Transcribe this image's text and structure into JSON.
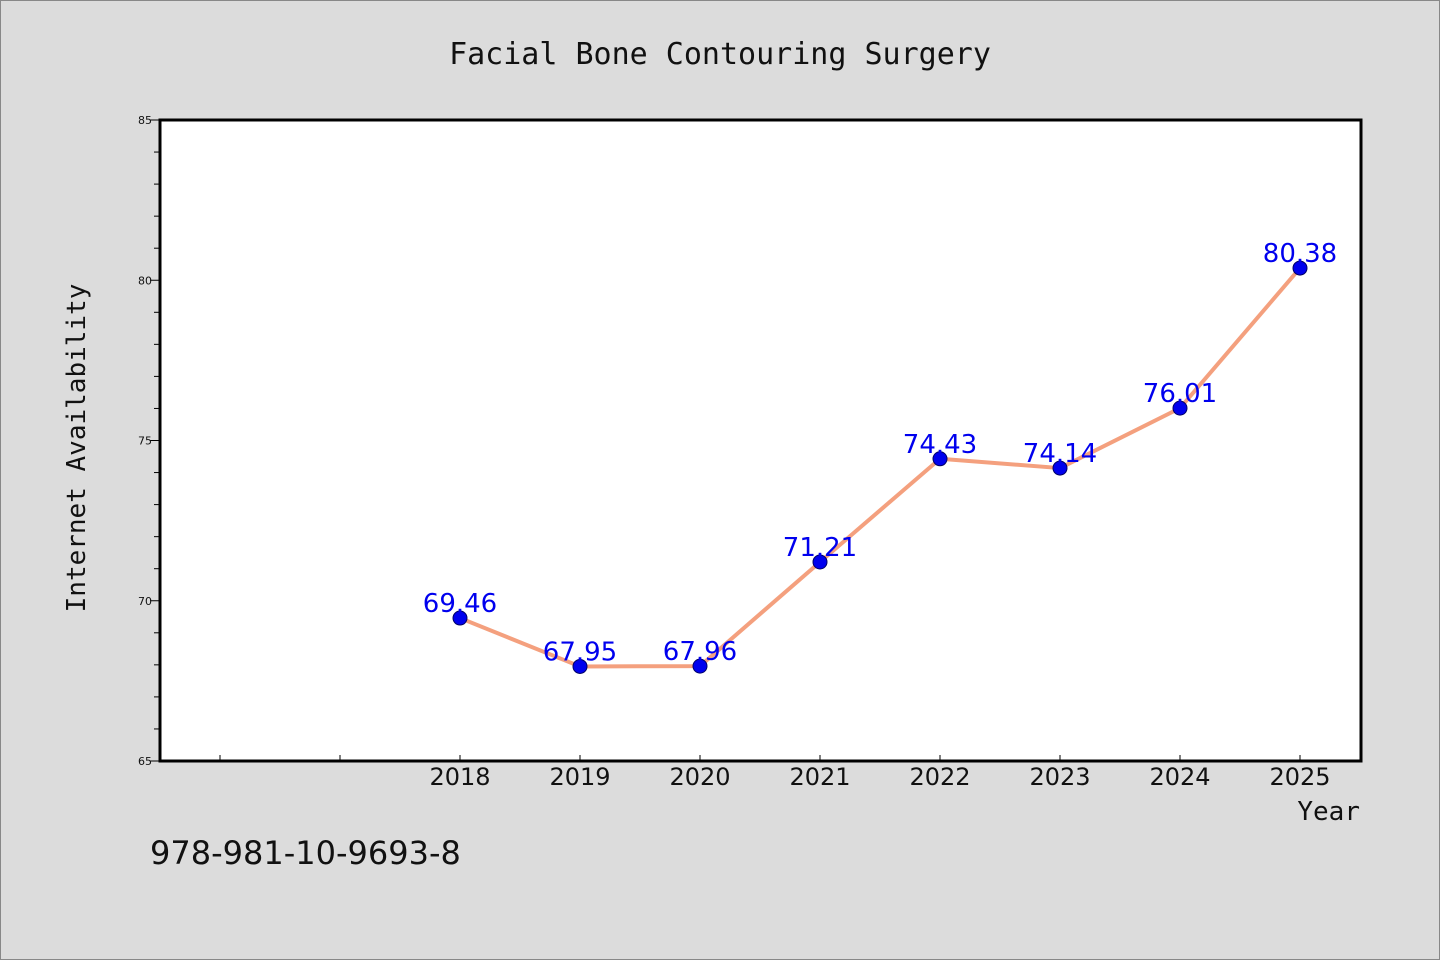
{
  "chart_data": {
    "type": "line",
    "title": "Facial Bone Contouring Surgery",
    "xlabel": "Year",
    "ylabel": "Internet Availability",
    "x": [
      "2018",
      "2019",
      "2020",
      "2021",
      "2022",
      "2023",
      "2024",
      "2025"
    ],
    "series": [
      {
        "values": [
          69.46,
          67.95,
          67.96,
          71.21,
          74.43,
          74.14,
          76.01,
          80.38
        ],
        "labels": [
          "69.46",
          "67.95",
          "67.96",
          "71.21",
          "74.43",
          "74.14",
          "76.01",
          "80.38"
        ]
      }
    ],
    "ylim": [
      65,
      85
    ],
    "yticks": [
      "65",
      "70",
      "75",
      "80",
      "85"
    ],
    "grid": false,
    "colors": {
      "line": "#f4a07e",
      "marker": "#0000ee",
      "marker_edge": "#000066",
      "data_label": "#0000ee",
      "background": "#dcdcdc",
      "plot_background": "#ffffff"
    }
  },
  "footer": {
    "isbn": "978-981-10-9693-8"
  }
}
